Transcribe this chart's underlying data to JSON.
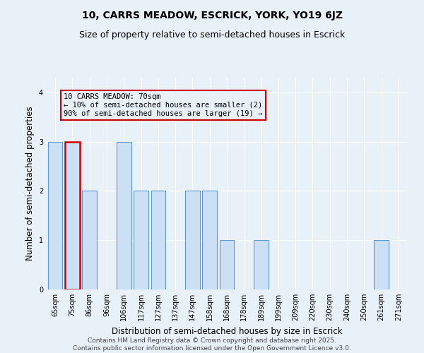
{
  "title": "10, CARRS MEADOW, ESCRICK, YORK, YO19 6JZ",
  "subtitle": "Size of property relative to semi-detached houses in Escrick",
  "xlabel": "Distribution of semi-detached houses by size in Escrick",
  "ylabel": "Number of semi-detached properties",
  "bins": [
    "65sqm",
    "75sqm",
    "86sqm",
    "96sqm",
    "106sqm",
    "117sqm",
    "127sqm",
    "137sqm",
    "147sqm",
    "158sqm",
    "168sqm",
    "178sqm",
    "189sqm",
    "199sqm",
    "209sqm",
    "220sqm",
    "230sqm",
    "240sqm",
    "250sqm",
    "261sqm",
    "271sqm"
  ],
  "values": [
    3,
    3,
    2,
    0,
    3,
    2,
    2,
    0,
    2,
    2,
    1,
    0,
    1,
    0,
    0,
    0,
    0,
    0,
    0,
    1,
    0
  ],
  "highlight_index": 1,
  "bar_color": "#cce0f5",
  "bar_edge_color": "#5b9bd5",
  "highlight_bar_edge_color": "#cc0000",
  "annotation_box_edge": "#cc0000",
  "annotation_text": "10 CARRS MEADOW: 70sqm\n← 10% of semi-detached houses are smaller (2)\n90% of semi-detached houses are larger (19) →",
  "footer": "Contains HM Land Registry data © Crown copyright and database right 2025.\nContains public sector information licensed under the Open Government Licence v3.0.",
  "ylim": [
    0,
    4.3
  ],
  "yticks": [
    0,
    1,
    2,
    3,
    4
  ],
  "bg_color": "#e8f0f8",
  "grid_color": "#ffffff",
  "title_fontsize": 10,
  "subtitle_fontsize": 9,
  "axis_label_fontsize": 8.5,
  "tick_fontsize": 7,
  "footer_fontsize": 6.5,
  "annotation_fontsize": 7.5
}
